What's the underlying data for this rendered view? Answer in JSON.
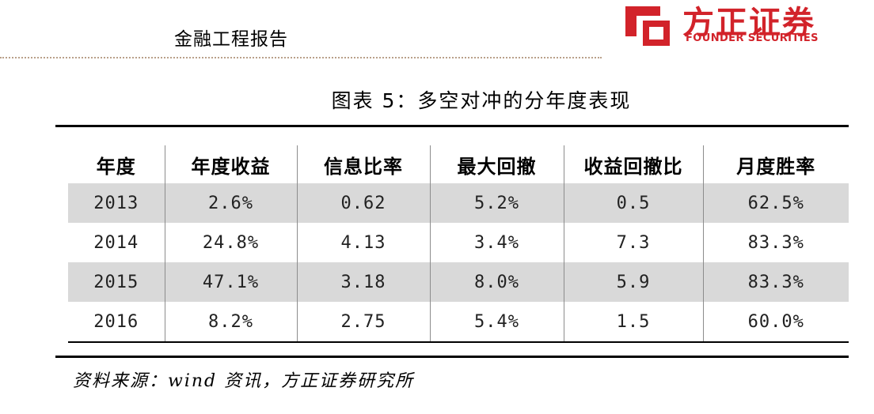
{
  "header": {
    "category": "金融工程报告",
    "logo": {
      "name_cn": "方正证券",
      "name_en": "FOUNDER SECURITIES",
      "brand_color": "#d2232a"
    }
  },
  "figure": {
    "title": "图表 5：多空对冲的分年度表现"
  },
  "table": {
    "columns": [
      "年度",
      "年度收益",
      "信息比率",
      "最大回撤",
      "收益回撤比",
      "月度胜率"
    ],
    "rows": [
      [
        "2013",
        "2.6%",
        "0.62",
        "5.2%",
        "0.5",
        "62.5%"
      ],
      [
        "2014",
        "24.8%",
        "4.13",
        "3.4%",
        "7.3",
        "83.3%"
      ],
      [
        "2015",
        "47.1%",
        "3.18",
        "8.0%",
        "5.9",
        "83.3%"
      ],
      [
        "2016",
        "8.2%",
        "2.75",
        "5.4%",
        "1.5",
        "60.0%"
      ]
    ],
    "shaded_row_color": "#d9d9d9"
  },
  "source": {
    "text": "资料来源：wind 资讯，方正证券研究所"
  }
}
